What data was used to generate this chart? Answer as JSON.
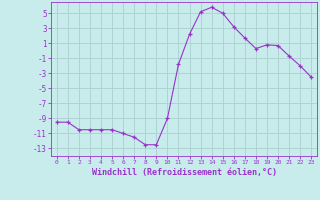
{
  "x": [
    0,
    1,
    2,
    3,
    4,
    5,
    6,
    7,
    8,
    9,
    10,
    11,
    12,
    13,
    14,
    15,
    16,
    17,
    18,
    19,
    20,
    21,
    22,
    23
  ],
  "y": [
    -9.5,
    -9.5,
    -10.5,
    -10.5,
    -10.5,
    -10.5,
    -11.0,
    -11.5,
    -12.5,
    -12.5,
    -9.0,
    -1.8,
    2.2,
    5.2,
    5.8,
    5.0,
    3.2,
    1.7,
    0.3,
    0.8,
    0.7,
    -0.7,
    -2.0,
    -3.5
  ],
  "line_color": "#9932CC",
  "marker": "+",
  "marker_color": "#9932CC",
  "bg_color": "#c8ecec",
  "grid_color": "#b0d4d4",
  "xlabel": "Windchill (Refroidissement éolien,°C)",
  "xlabel_color": "#9932CC",
  "tick_color": "#9932CC",
  "ylabel_ticks": [
    -13,
    -11,
    -9,
    -7,
    -5,
    -3,
    -1,
    1,
    3,
    5
  ],
  "xlim": [
    -0.5,
    23.5
  ],
  "ylim": [
    -14.0,
    6.5
  ],
  "figsize": [
    3.2,
    2.0
  ],
  "dpi": 100
}
